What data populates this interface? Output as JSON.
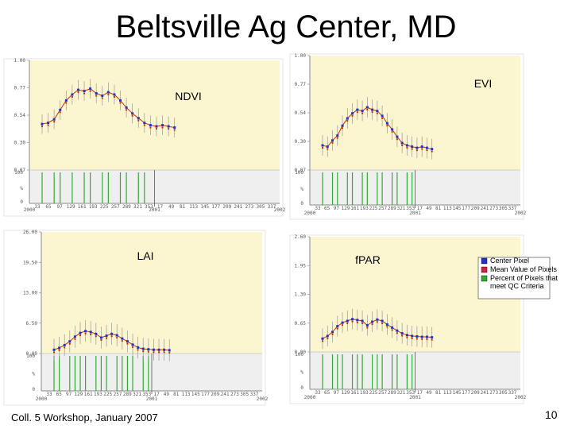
{
  "slide": {
    "title": "Beltsville Ag Center, MD",
    "footer": "Coll. 5 Workshop, January 2007",
    "page_number": "10"
  },
  "legend": {
    "items": [
      {
        "label": "Center Pixel",
        "color": "#2233cc"
      },
      {
        "label": "Mean Value of Pixels",
        "color": "#cc2244"
      },
      {
        "label": "Percent of Pixels that meet QC Criteria",
        "color": "#33aa33"
      }
    ]
  },
  "colors": {
    "plot_bg": "#fbf6d0",
    "qc_bg": "#efefef",
    "center": "#2233cc",
    "mean_line": "#cc3300",
    "qc_bar": "#33aa33",
    "err": "#999999"
  },
  "chart_data": [
    {
      "type": "scatter",
      "title": "NDVI",
      "y_ticks": [
        "1.00",
        "0.77",
        "0.54",
        "0.30",
        "0.07"
      ],
      "ylim": [
        0.07,
        1.0
      ],
      "qc_ticks": [
        "100",
        "%",
        "0"
      ],
      "x_start_label": "2000",
      "x_mid_label": "2001",
      "x_end_label": "2002",
      "doy_labels": [
        "33",
        "65",
        "97",
        "129",
        "161",
        "193",
        "225",
        "257",
        "289",
        "321",
        "353",
        "17",
        "49",
        "81",
        "113",
        "145",
        "177",
        "209",
        "241",
        "273",
        "305",
        "337"
      ],
      "values": [
        0.46,
        0.47,
        0.5,
        0.58,
        0.66,
        0.71,
        0.75,
        0.74,
        0.76,
        0.72,
        0.7,
        0.73,
        0.71,
        0.66,
        0.6,
        0.55,
        0.51,
        0.47,
        0.45,
        0.44,
        0.45,
        0.44,
        0.43
      ],
      "qc": [
        100,
        0,
        100,
        100,
        0,
        100,
        0,
        100,
        100,
        0,
        100,
        100,
        0,
        100,
        100,
        0,
        100,
        100,
        0,
        0,
        0,
        0,
        0
      ]
    },
    {
      "type": "scatter",
      "title": "EVI",
      "y_ticks": [
        "1.00",
        "0.77",
        "0.54",
        "0.30",
        "0.07"
      ],
      "ylim": [
        0.07,
        1.0
      ],
      "qc_ticks": [
        "100",
        "%",
        "0"
      ],
      "x_start_label": "2000",
      "x_mid_label": "2001",
      "x_end_label": "2002",
      "doy_labels": [
        "33",
        "65",
        "97",
        "129",
        "161",
        "193",
        "225",
        "257",
        "289",
        "321",
        "353",
        "17",
        "49",
        "81",
        "113",
        "145",
        "177",
        "209",
        "241",
        "273",
        "305",
        "337"
      ],
      "values": [
        0.27,
        0.26,
        0.31,
        0.35,
        0.43,
        0.49,
        0.53,
        0.56,
        0.55,
        0.58,
        0.56,
        0.55,
        0.51,
        0.45,
        0.4,
        0.34,
        0.29,
        0.27,
        0.26,
        0.25,
        0.26,
        0.25,
        0.24
      ],
      "qc": [
        100,
        0,
        100,
        100,
        0,
        100,
        100,
        0,
        100,
        100,
        0,
        100,
        100,
        0,
        100,
        100,
        0,
        100,
        100,
        0,
        0,
        0,
        0
      ]
    },
    {
      "type": "scatter",
      "title": "LAI",
      "y_ticks": [
        "26.00",
        "19.50",
        "13.00",
        "6.50",
        "0.00"
      ],
      "ylim": [
        0,
        26
      ],
      "qc_ticks": [
        "100",
        "%",
        "0"
      ],
      "x_start_label": "2000",
      "x_mid_label": "2001",
      "x_end_label": "2002",
      "doy_labels": [
        "33",
        "65",
        "97",
        "129",
        "161",
        "193",
        "225",
        "257",
        "289",
        "321",
        "353",
        "17",
        "49",
        "81",
        "113",
        "145",
        "177",
        "209",
        "241",
        "273",
        "305",
        "337"
      ],
      "values": [
        0.8,
        1.2,
        1.8,
        2.6,
        3.6,
        4.4,
        4.8,
        4.6,
        4.2,
        3.4,
        3.8,
        4.2,
        3.9,
        3.2,
        2.6,
        1.9,
        1.3,
        1.0,
        0.9,
        0.8,
        0.8,
        0.8,
        0.7
      ],
      "qc": [
        100,
        100,
        0,
        100,
        100,
        100,
        100,
        0,
        100,
        100,
        100,
        0,
        100,
        100,
        100,
        100,
        0,
        100,
        100,
        0,
        0,
        0,
        0
      ]
    },
    {
      "type": "scatter",
      "title": "fPAR",
      "y_ticks": [
        "2.60",
        "1.95",
        "1.30",
        "0.65",
        "0.00"
      ],
      "ylim": [
        0,
        2.6
      ],
      "qc_ticks": [
        "100",
        "%",
        "0"
      ],
      "x_start_label": "2000",
      "x_mid_label": "2001",
      "x_end_label": "2002",
      "doy_labels": [
        "33",
        "65",
        "97",
        "129",
        "161",
        "193",
        "225",
        "257",
        "289",
        "321",
        "353",
        "17",
        "49",
        "81",
        "113",
        "145",
        "177",
        "209",
        "241",
        "273",
        "305",
        "337"
      ],
      "values": [
        0.3,
        0.36,
        0.45,
        0.58,
        0.66,
        0.7,
        0.74,
        0.72,
        0.7,
        0.6,
        0.68,
        0.73,
        0.7,
        0.62,
        0.55,
        0.48,
        0.42,
        0.38,
        0.36,
        0.35,
        0.34,
        0.34,
        0.33
      ],
      "qc": [
        100,
        0,
        100,
        100,
        100,
        0,
        100,
        100,
        100,
        0,
        100,
        100,
        100,
        0,
        100,
        100,
        0,
        100,
        100,
        0,
        0,
        0,
        0
      ]
    }
  ]
}
